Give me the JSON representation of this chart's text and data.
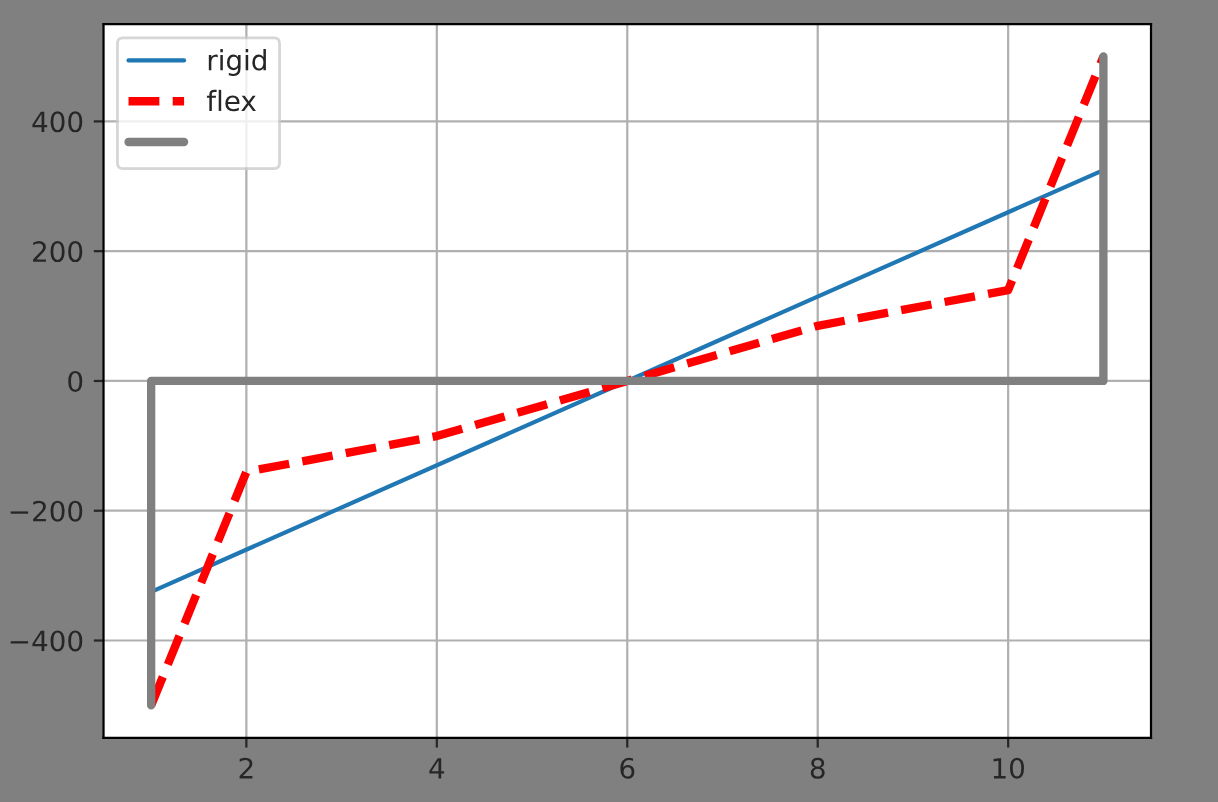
{
  "chart_data": {
    "type": "line",
    "series": [
      {
        "name": "rigid",
        "color": "#1f77b4",
        "x": [
          1,
          11
        ],
        "values": [
          -325,
          325
        ],
        "line_style": "solid"
      },
      {
        "name": "flex",
        "color": "#ff0000",
        "x": [
          1,
          2,
          4,
          6,
          8,
          10,
          11
        ],
        "values": [
          -500,
          -140,
          -85,
          0,
          85,
          140,
          500
        ],
        "line_style": "dashed"
      },
      {
        "color": "#808080",
        "x": [
          1,
          1,
          11,
          11
        ],
        "values": [
          -500,
          0,
          0,
          500
        ],
        "line_style": "solid"
      }
    ],
    "xlim": [
      0.5,
      11.5
    ],
    "ylim": [
      -550,
      550
    ],
    "xticks": [
      2,
      4,
      6,
      8,
      10
    ],
    "yticks": [
      {
        "value": -400,
        "label": "−400"
      },
      {
        "value": -200,
        "label": "−200"
      },
      0,
      200,
      400
    ],
    "grid": true,
    "legend": "top left",
    "marker": "none"
  }
}
